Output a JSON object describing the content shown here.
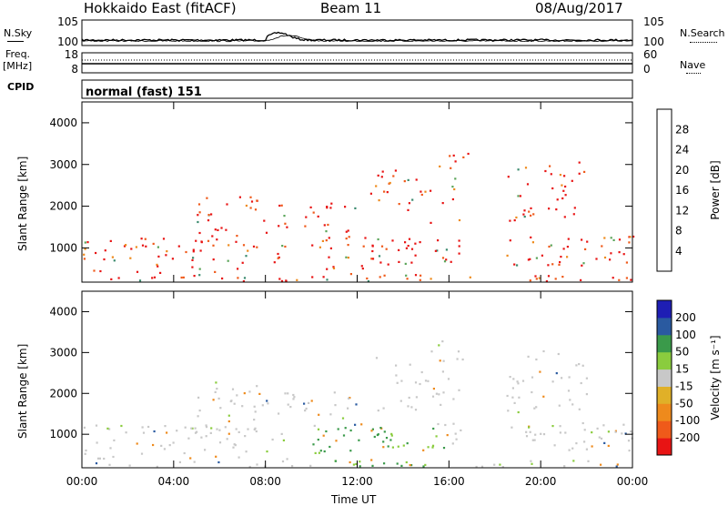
{
  "header": {
    "station": "Hokkaido East (fitACF)",
    "beam": "Beam 11",
    "date": "08/Aug/2017"
  },
  "side_labels": {
    "nsky": "N.Sky",
    "freq": "Freq.",
    "freq_unit": "[MHz]",
    "cpid": "CPID",
    "nsearch": "N.Search",
    "nave": "Nave"
  },
  "cpid_text": "normal (fast) 151",
  "colors": {
    "power": [
      "#1e1ee6",
      "#2b58a8",
      "#3a8a6e",
      "#5ba55a",
      "#e0b028",
      "#ee8a1c",
      "#ef5a1a",
      "#e81414"
    ],
    "velocity": [
      "#e81414",
      "#ef5a1a",
      "#ee8a1c",
      "#e0b028",
      "#c8c8c8",
      "#8acc3e",
      "#3a9a4a",
      "#2a5aa0",
      "#1e1eb4"
    ],
    "ground": "#c8c8c8"
  },
  "chart_data": [
    {
      "type": "line",
      "title": "N.Sky / N.Search",
      "ylabel": "N.Sky",
      "y_ticks_left": [
        "10^5",
        "10^0"
      ],
      "y_ticks_right": [
        "10^5",
        "10^0"
      ],
      "xlim": [
        "00:00",
        "24:00"
      ]
    },
    {
      "type": "line",
      "ylabel": "Freq. [MHz]",
      "y_ticks_left": [
        "18",
        "8"
      ],
      "y_ticks_right": [
        "60",
        "0"
      ],
      "xlim": [
        "00:00",
        "24:00"
      ]
    },
    {
      "type": "heatmap",
      "ylabel": "Slant Range [km]",
      "y_ticks": [
        1000,
        2000,
        3000,
        4000
      ],
      "ylim": [
        180,
        4500
      ],
      "x_ticks": [
        "00:00",
        "04:00",
        "08:00",
        "12:00",
        "16:00",
        "20:00",
        "00:00"
      ],
      "colorbar_label": "Power [dB]",
      "colorbar_ticks": [
        4,
        8,
        12,
        16,
        20,
        24,
        28
      ],
      "colorbar_range": [
        0,
        30
      ],
      "xlabel": ""
    },
    {
      "type": "heatmap",
      "ylabel": "Slant Range [km]",
      "y_ticks": [
        1000,
        2000,
        3000,
        4000
      ],
      "ylim": [
        180,
        4500
      ],
      "x_ticks": [
        "00:00",
        "04:00",
        "08:00",
        "12:00",
        "16:00",
        "20:00",
        "00:00"
      ],
      "xlabel": "Time UT",
      "colorbar_label": "Velocity [m s^-1]",
      "colorbar_ticks": [
        200,
        100,
        50,
        15,
        -15,
        -50,
        -100,
        -200
      ]
    }
  ]
}
